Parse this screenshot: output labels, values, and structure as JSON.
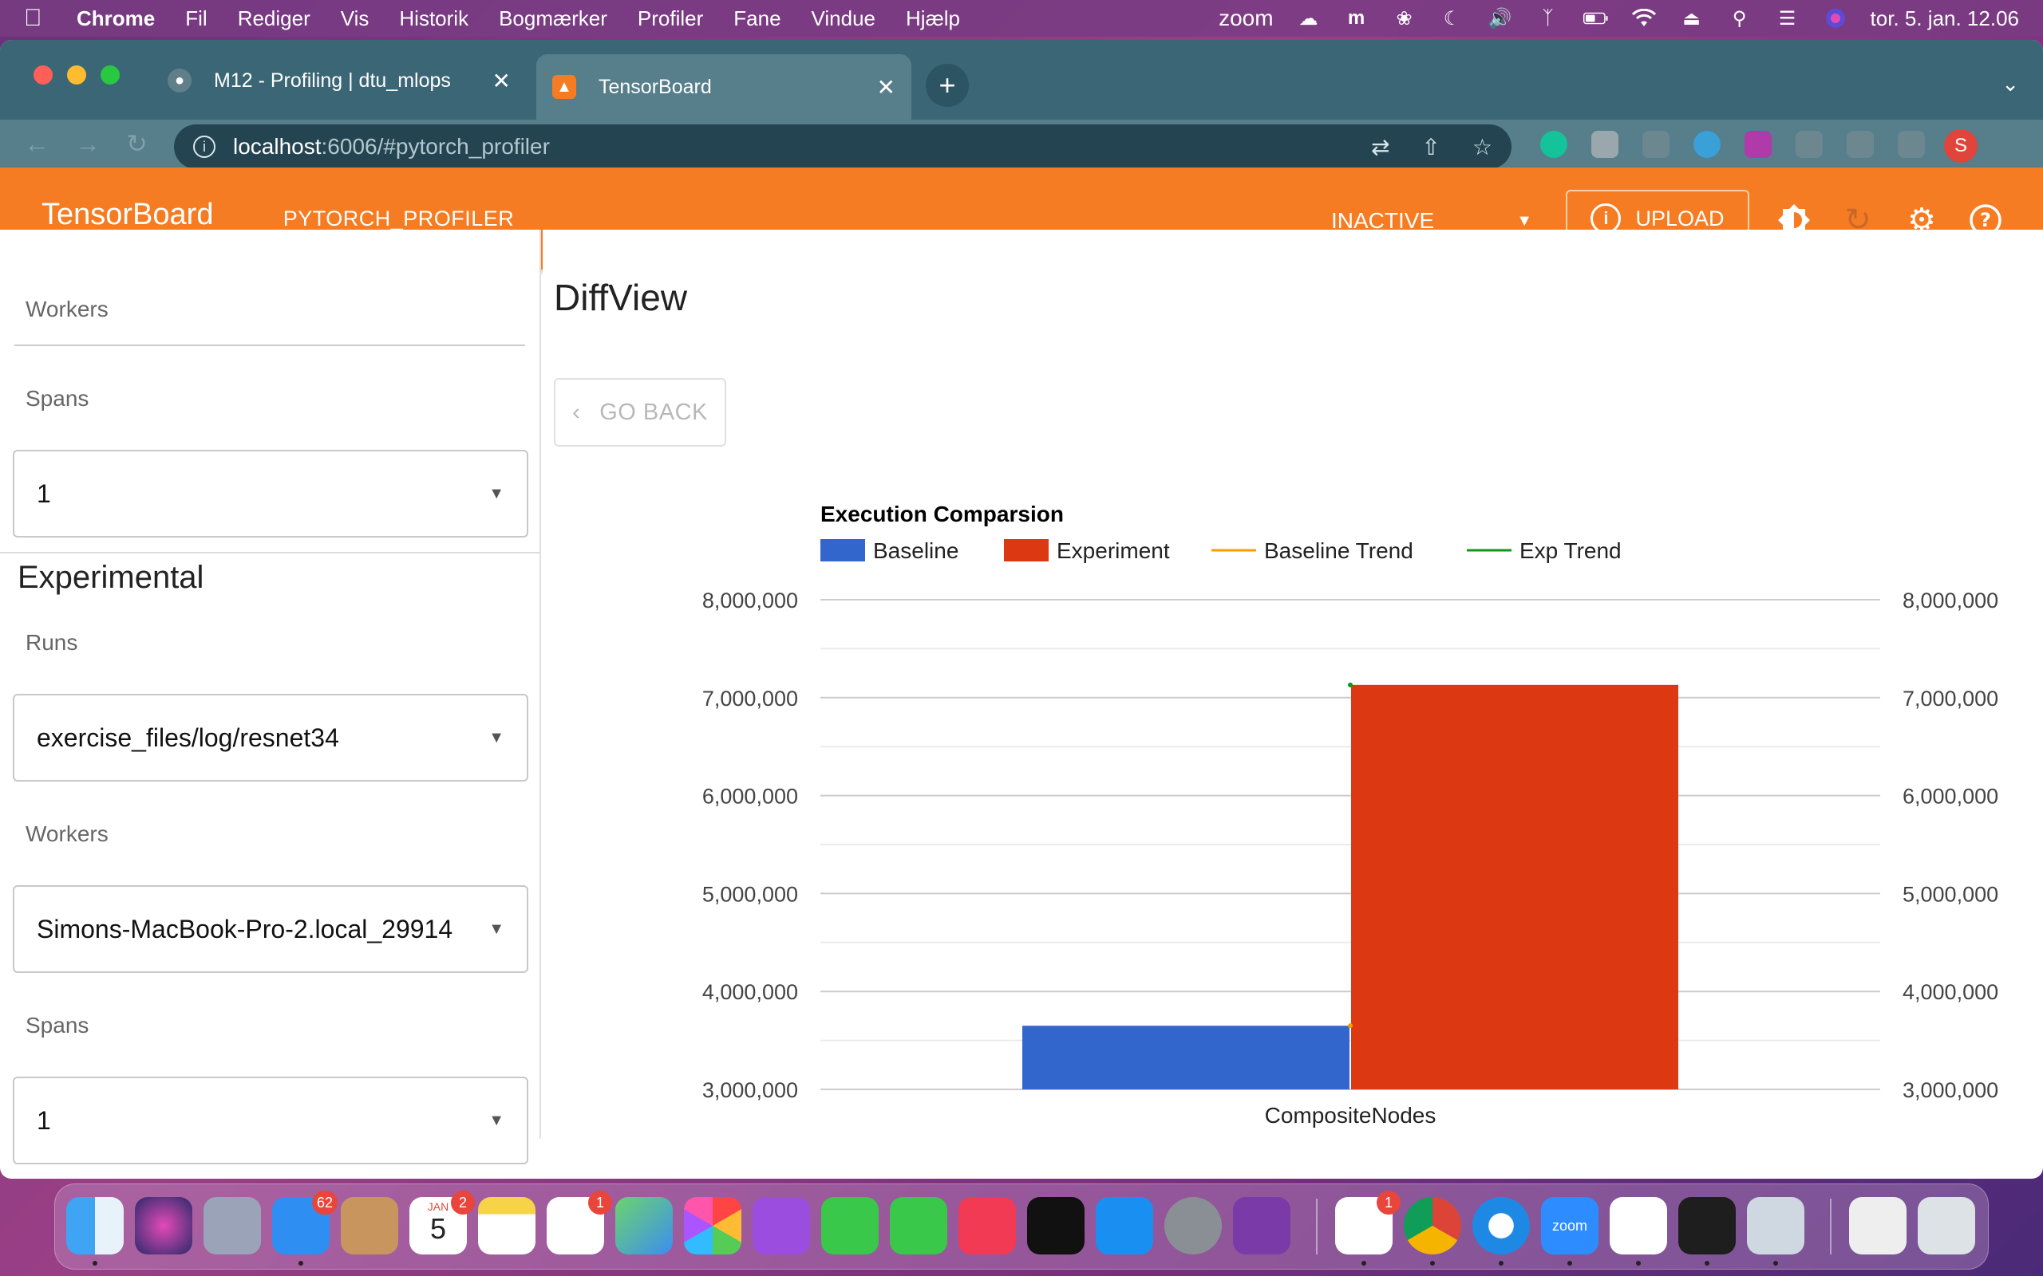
{
  "menubar": {
    "app": "Chrome",
    "items": [
      "Fil",
      "Rediger",
      "Vis",
      "Historik",
      "Bogmærker",
      "Profiler",
      "Fane",
      "Vindue",
      "Hjælp"
    ],
    "zoom_label": "zoom",
    "clock": "tor. 5. jan. 12.06"
  },
  "browser": {
    "tabs": [
      {
        "title": "M12 - Profiling | dtu_mlops"
      },
      {
        "title": "TensorBoard"
      }
    ],
    "url_host": "localhost",
    "url_rest": ":6006/#pytorch_profiler",
    "profile_initial": "S"
  },
  "tensorboard": {
    "title": "TensorBoard",
    "active_tab": "PYTORCH_PROFILER",
    "status_select": "INACTIVE",
    "upload_label": "UPLOAD"
  },
  "sidebar": {
    "baseline": {
      "workers_label": "Workers",
      "spans_label": "Spans",
      "spans_value": "1"
    },
    "experimental": {
      "title": "Experimental",
      "runs_label": "Runs",
      "runs_value": "exercise_files/log/resnet34",
      "workers_label": "Workers",
      "workers_value": "Simons-MacBook-Pro-2.local_29914",
      "spans_label": "Spans",
      "spans_value": "1"
    }
  },
  "main": {
    "title": "DiffView",
    "go_back_label": "GO BACK"
  },
  "chart_data": {
    "type": "bar",
    "title": "Execution Comparsion",
    "categories": [
      "CompositeNodes"
    ],
    "series": [
      {
        "name": "Baseline",
        "values": [
          3650000
        ],
        "color": "#3366cc"
      },
      {
        "name": "Experiment",
        "values": [
          7130000
        ],
        "color": "#dc3912"
      }
    ],
    "trend_series": [
      {
        "name": "Baseline Trend",
        "color": "#ff9900"
      },
      {
        "name": "Exp Trend",
        "color": "#109618"
      }
    ],
    "ylim": [
      3000000,
      8000000
    ],
    "yticks": [
      "3,000,000",
      "4,000,000",
      "5,000,000",
      "6,000,000",
      "7,000,000",
      "8,000,000"
    ],
    "ytick_values": [
      3000000,
      4000000,
      5000000,
      6000000,
      7000000,
      8000000
    ],
    "xlabel": "",
    "ylabel": "",
    "legend": "top"
  },
  "dock": {
    "mail_badge": "62",
    "calendar_month": "JAN",
    "calendar_day": "5",
    "calendar_badge": "2",
    "reminders_badge": "1",
    "slack_badge": "1",
    "zoom_label": "zoom"
  }
}
